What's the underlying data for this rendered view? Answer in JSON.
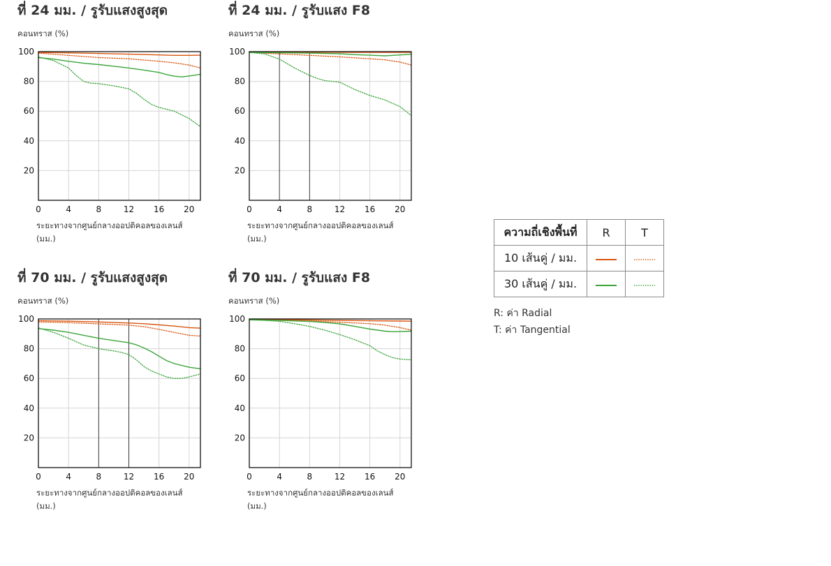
{
  "colors": {
    "r10": "#d9540c",
    "t10": "#d9540c",
    "r30": "#3aa53a",
    "t30": "#3aa53a",
    "grid_strong": "#222222",
    "grid_light": "#d4d4d4"
  },
  "legend": {
    "header_freq": "ความถี่เชิงพื้นที่",
    "header_r": "R",
    "header_t": "T",
    "row_10": "10 เส้นคู่ / มม.",
    "row_30": "30 เส้นคู่ / มม.",
    "note_r": "R: ค่า Radial",
    "note_t": "T: ค่า Tangential"
  },
  "chart_data": [
    {
      "type": "line",
      "title": "ที่ 24 มม. / รูรับแสงสูงสุด",
      "ylabel": "คอนทราส (%)",
      "xlabel_line1": "ระยะทางจากศูนย์กลางออปติคอลของเลนส์",
      "xlabel_line2": "(มม.)",
      "xlim": [
        0,
        21.5
      ],
      "ylim": [
        0,
        100
      ],
      "xticks": [
        "0",
        "4",
        "8",
        "12",
        "16",
        "20"
      ],
      "yticks": [
        "100",
        "80",
        "60",
        "40",
        "20"
      ],
      "strong_x_gridlines": [],
      "series": [
        {
          "key": "r10",
          "style": "solid",
          "x": [
            0,
            4,
            8,
            12,
            16,
            18,
            20,
            21.5
          ],
          "y": [
            99.5,
            99.2,
            98.8,
            98.3,
            97.8,
            97.5,
            97.5,
            97.6
          ]
        },
        {
          "key": "t10",
          "style": "dotted",
          "x": [
            0,
            4,
            8,
            12,
            16,
            18,
            20,
            21.5
          ],
          "y": [
            99,
            97.5,
            96,
            95.2,
            93.5,
            92.5,
            91,
            89
          ]
        },
        {
          "key": "r30",
          "style": "solid",
          "x": [
            0,
            2,
            4,
            6,
            8,
            10,
            12,
            14,
            16,
            17,
            18,
            19,
            20,
            21.5
          ],
          "y": [
            96,
            95,
            93.5,
            92.2,
            91.3,
            90.2,
            89,
            87.6,
            86,
            84.6,
            83.5,
            83,
            83.6,
            84.8
          ]
        },
        {
          "key": "t30",
          "style": "dotted",
          "x": [
            0,
            2,
            4,
            5,
            6,
            7,
            8,
            10,
            12,
            13,
            14,
            15,
            16,
            18,
            20,
            21.5
          ],
          "y": [
            96.5,
            94,
            89,
            84,
            80,
            78.8,
            78.5,
            77,
            75,
            72,
            68,
            64.5,
            62.5,
            60,
            55,
            49.5
          ]
        }
      ]
    },
    {
      "type": "line",
      "title": "ที่ 24 มม. / รูรับแสง F8",
      "ylabel": "คอนทราส (%)",
      "xlabel_line1": "ระยะทางจากศูนย์กลางออปติคอลของเลนส์",
      "xlabel_line2": "(มม.)",
      "xlim": [
        0,
        21.5
      ],
      "ylim": [
        0,
        100
      ],
      "xticks": [
        "0",
        "4",
        "8",
        "12",
        "16",
        "20"
      ],
      "yticks": [
        "100",
        "80",
        "60",
        "40",
        "20"
      ],
      "strong_x_gridlines": [
        4,
        8
      ],
      "series": [
        {
          "key": "r10",
          "style": "solid",
          "x": [
            0,
            4,
            8,
            12,
            16,
            20,
            21.5
          ],
          "y": [
            99.8,
            99.7,
            99.6,
            99.6,
            99.5,
            99.5,
            99.5
          ]
        },
        {
          "key": "t10",
          "style": "dotted",
          "x": [
            0,
            4,
            8,
            12,
            16,
            18,
            20,
            21.5
          ],
          "y": [
            99.5,
            98.5,
            97.5,
            96.5,
            95.2,
            94.5,
            93,
            91
          ]
        },
        {
          "key": "r30",
          "style": "solid",
          "x": [
            0,
            4,
            8,
            12,
            14,
            16,
            18,
            20,
            21.5
          ],
          "y": [
            99.5,
            99.3,
            99,
            98.6,
            98,
            97.6,
            97.2,
            97.8,
            98.2
          ]
        },
        {
          "key": "t30",
          "style": "dotted",
          "x": [
            0,
            2,
            4,
            6,
            8,
            9,
            10,
            12,
            13,
            14,
            16,
            18,
            20,
            21.5
          ],
          "y": [
            99.5,
            98.5,
            95,
            89,
            84,
            82,
            80.5,
            79.5,
            77,
            74.5,
            70.5,
            67.5,
            63,
            57
          ]
        }
      ]
    },
    {
      "type": "line",
      "title": "ที่ 70 มม. / รูรับแสงสูงสุด",
      "ylabel": "คอนทราส (%)",
      "xlabel_line1": "ระยะทางจากศูนย์กลางออปติคอลของเลนส์",
      "xlabel_line2": "(มม.)",
      "xlim": [
        0,
        21.5
      ],
      "ylim": [
        0,
        100
      ],
      "xticks": [
        "0",
        "4",
        "8",
        "12",
        "16",
        "20"
      ],
      "yticks": [
        "100",
        "80",
        "60",
        "40",
        "20"
      ],
      "strong_x_gridlines": [
        8,
        12
      ],
      "series": [
        {
          "key": "r10",
          "style": "solid",
          "x": [
            0,
            4,
            8,
            12,
            14,
            16,
            18,
            20,
            21.5
          ],
          "y": [
            98.8,
            98.5,
            98,
            97.3,
            96.8,
            96,
            95.2,
            94.2,
            93.8
          ]
        },
        {
          "key": "t10",
          "style": "dotted",
          "x": [
            0,
            4,
            8,
            12,
            14,
            16,
            18,
            20,
            21.5
          ],
          "y": [
            98,
            97.5,
            96.7,
            95.8,
            94.8,
            93,
            91,
            89,
            88.5
          ]
        },
        {
          "key": "r30",
          "style": "solid",
          "x": [
            0,
            2,
            4,
            6,
            8,
            10,
            12,
            13,
            14,
            15,
            16,
            17,
            18,
            20,
            21.5
          ],
          "y": [
            93.5,
            92.5,
            91,
            89,
            87,
            85.5,
            84,
            82.6,
            80.5,
            78,
            75,
            72,
            70,
            67.5,
            66.5
          ]
        },
        {
          "key": "t30",
          "style": "dotted",
          "x": [
            0,
            2,
            4,
            6,
            8,
            9,
            10,
            11,
            12,
            13,
            14,
            15,
            16,
            17,
            18,
            19,
            20,
            21.5
          ],
          "y": [
            94,
            91,
            87,
            82.5,
            80,
            79.2,
            78.5,
            77.5,
            76,
            72.5,
            68,
            65,
            63,
            61,
            60,
            60,
            61,
            63
          ]
        }
      ]
    },
    {
      "type": "line",
      "title": "ที่ 70 มม. / รูรับแสง F8",
      "ylabel": "คอนทราส (%)",
      "xlabel_line1": "ระยะทางจากศูนย์กลางออปติคอลของเลนส์",
      "xlabel_line2": "(มม.)",
      "xlim": [
        0,
        21.5
      ],
      "ylim": [
        0,
        100
      ],
      "xticks": [
        "0",
        "4",
        "8",
        "12",
        "16",
        "20"
      ],
      "yticks": [
        "100",
        "80",
        "60",
        "40",
        "20"
      ],
      "strong_x_gridlines": [],
      "series": [
        {
          "key": "r10",
          "style": "solid",
          "x": [
            0,
            4,
            8,
            12,
            16,
            20,
            21.5
          ],
          "y": [
            99.8,
            99.6,
            99.3,
            99,
            98.8,
            98.6,
            98.5
          ]
        },
        {
          "key": "t10",
          "style": "dotted",
          "x": [
            0,
            4,
            8,
            12,
            16,
            18,
            20,
            21.5
          ],
          "y": [
            99.7,
            99.2,
            98.6,
            97.8,
            96.8,
            95.8,
            94.2,
            92.5
          ]
        },
        {
          "key": "r30",
          "style": "solid",
          "x": [
            0,
            4,
            8,
            10,
            12,
            14,
            16,
            18,
            19,
            20,
            21.5
          ],
          "y": [
            99.5,
            99,
            98.3,
            97.6,
            96.7,
            95,
            93.2,
            91.8,
            91.4,
            91.5,
            91.8
          ]
        },
        {
          "key": "t30",
          "style": "dotted",
          "x": [
            0,
            2,
            4,
            6,
            8,
            10,
            12,
            14,
            16,
            17,
            18,
            19,
            20,
            21.5
          ],
          "y": [
            99.3,
            99,
            98.4,
            96.8,
            95,
            92.5,
            89.5,
            86,
            82,
            78.5,
            76,
            74,
            73,
            72.5
          ]
        }
      ]
    }
  ]
}
